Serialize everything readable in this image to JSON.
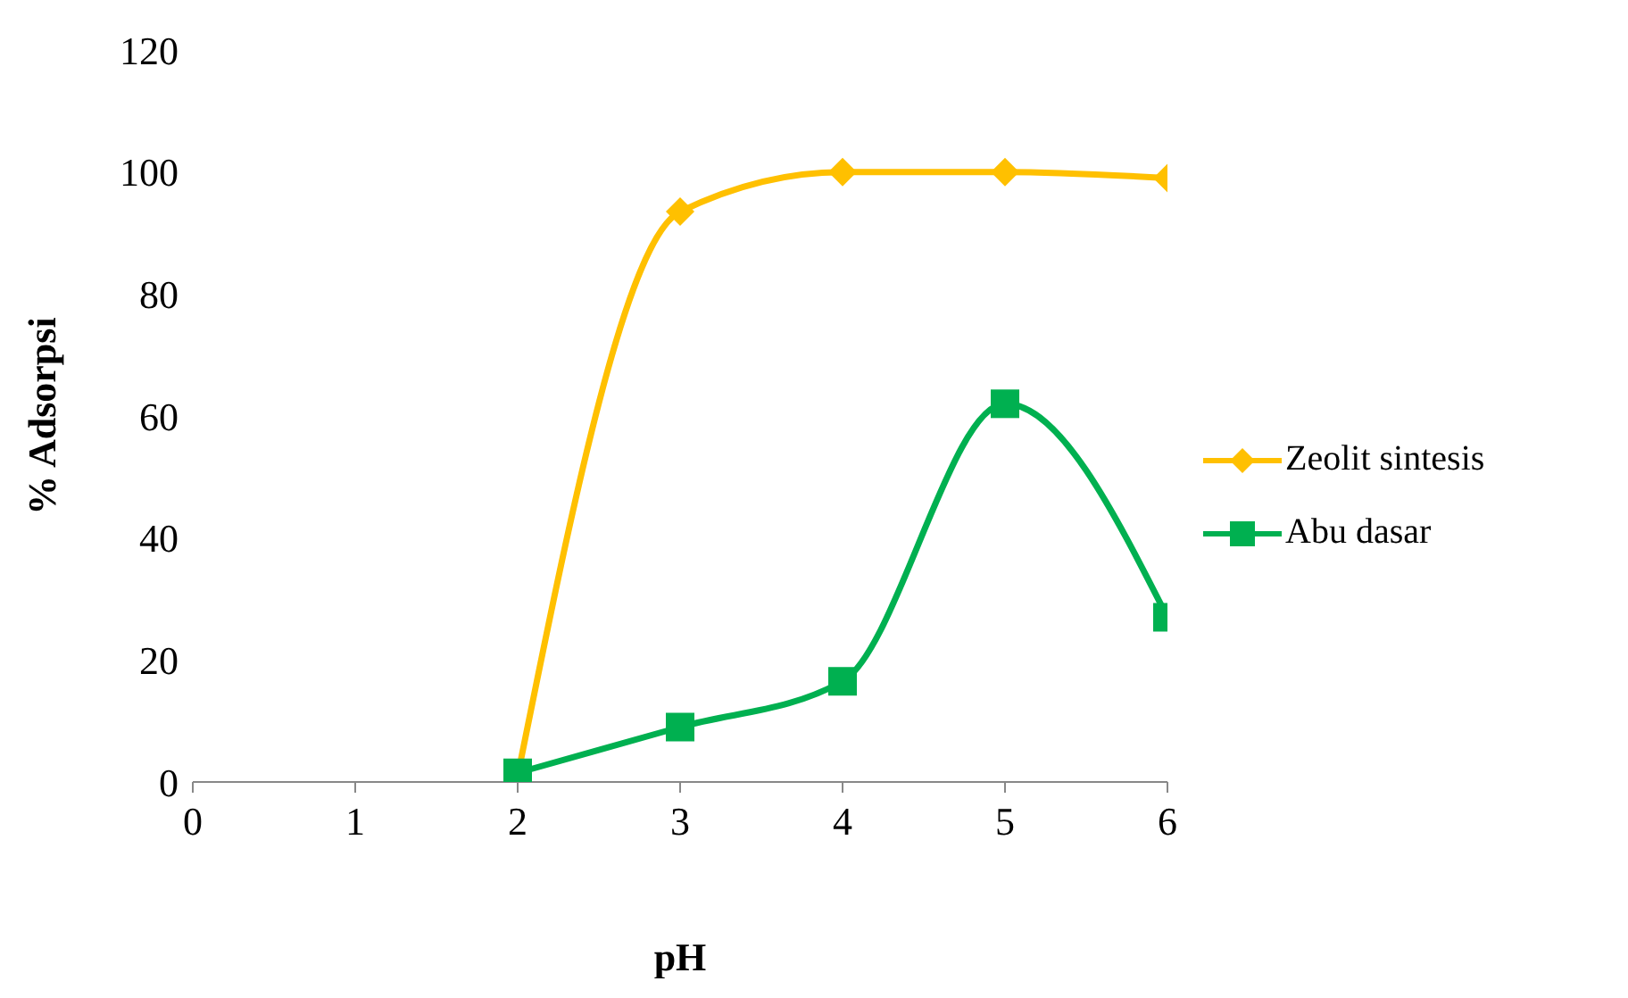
{
  "chart_data": {
    "type": "line",
    "xlabel": "pH",
    "ylabel": "% Adsorpsi",
    "x": [
      2,
      3,
      4,
      5,
      6
    ],
    "series": [
      {
        "name": "Zeolit sintesis",
        "color": "#ffc000",
        "marker": "diamond",
        "values": [
          1,
          93.5,
          100,
          100,
          99
        ]
      },
      {
        "name": "Abu dasar",
        "color": "#00b050",
        "marker": "square",
        "values": [
          1.5,
          9,
          16.5,
          62,
          27
        ]
      }
    ],
    "xlim": [
      0,
      6
    ],
    "xticks": [
      0,
      1,
      2,
      3,
      4,
      5,
      6
    ],
    "ylim": [
      0,
      120
    ],
    "yticks": [
      0,
      20,
      40,
      60,
      80,
      100,
      120
    ],
    "grid": false,
    "legend": "right"
  }
}
